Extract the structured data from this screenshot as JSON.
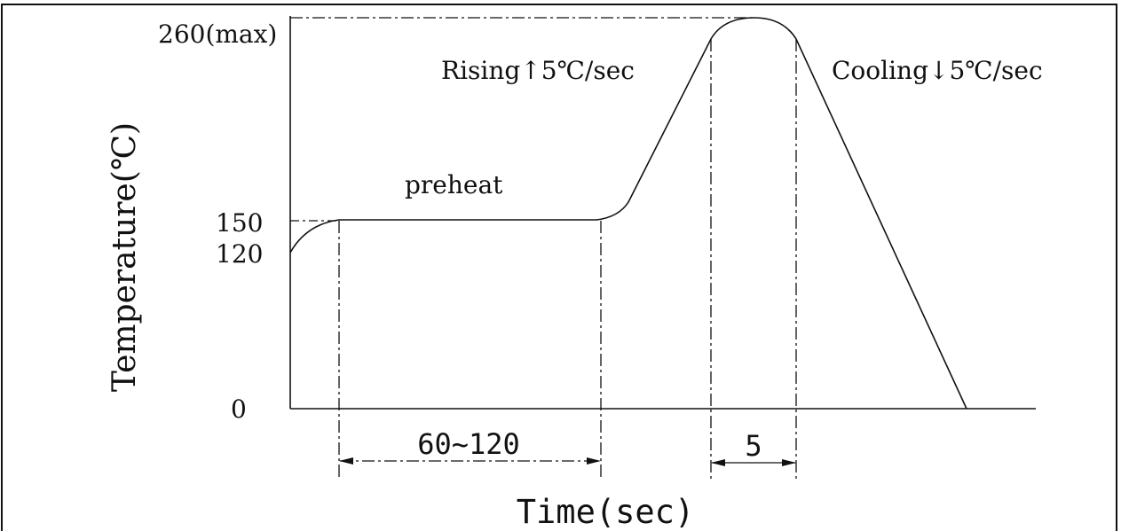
{
  "labels": {
    "y_axis_title": "Temperature(℃)",
    "x_axis_title": "Time(sec)",
    "tick_0": "0",
    "tick_120": "120",
    "tick_150": "150",
    "tick_260": "260(max)",
    "preheat": "preheat",
    "rising": "Rising↑5℃/sec",
    "cooling": "Cooling↓5℃/sec",
    "preheat_duration": "60~120",
    "peak_duration": "5"
  },
  "colors": {
    "line": "#111111",
    "background": "#ffffff"
  }
}
